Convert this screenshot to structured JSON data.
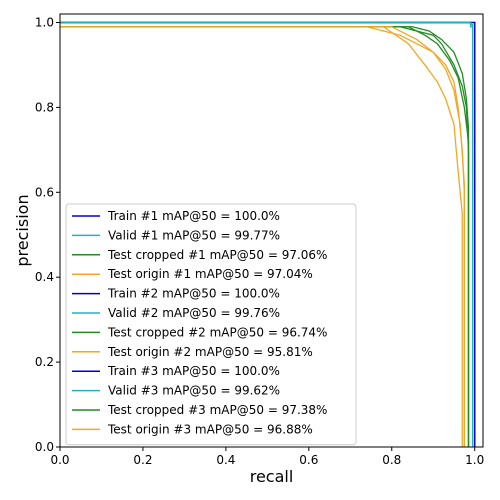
{
  "chart_data": {
    "type": "line",
    "xlabel": "recall",
    "ylabel": "precision",
    "xlim": [
      0.0,
      1.02
    ],
    "ylim": [
      0.0,
      1.02
    ],
    "x_ticks": [
      "0.0",
      "0.2",
      "0.4",
      "0.6",
      "0.8",
      "1.0"
    ],
    "y_ticks": [
      "0.0",
      "0.2",
      "0.4",
      "0.6",
      "0.8",
      "1.0"
    ],
    "grid": false,
    "legend_position": "lower-left",
    "series": [
      {
        "name": "Train #1 mAP@50 = 100.0%",
        "color": "#0000cd",
        "x": [
          0,
          1.0,
          1.0
        ],
        "y": [
          1.0,
          1.0,
          0
        ]
      },
      {
        "name": "Valid #1 mAP@50 = 99.77%",
        "color": "#20b2c0",
        "x": [
          0,
          0.99,
          0.99,
          0.995,
          0.995
        ],
        "y": [
          1.0,
          1.0,
          0.995,
          0.995,
          0
        ]
      },
      {
        "name": "Test cropped #1 mAP@50 = 97.06%",
        "color": "#228b22",
        "x": [
          0,
          0.82,
          0.86,
          0.9,
          0.92,
          0.95,
          0.97,
          0.98,
          0.985,
          0.985
        ],
        "y": [
          0.99,
          0.99,
          0.98,
          0.97,
          0.95,
          0.9,
          0.85,
          0.8,
          0.7,
          0
        ]
      },
      {
        "name": "Test origin #1 mAP@50 = 97.04%",
        "color": "#f5a623",
        "x": [
          0,
          0.74,
          0.82,
          0.86,
          0.9,
          0.93,
          0.95,
          0.96,
          0.97,
          0.975,
          0.975
        ],
        "y": [
          0.99,
          0.99,
          0.97,
          0.95,
          0.93,
          0.9,
          0.86,
          0.8,
          0.7,
          0.6,
          0
        ]
      },
      {
        "name": "Train #2 mAP@50 = 100.0%",
        "color": "#0000cd",
        "x": [
          0,
          1.0,
          1.0
        ],
        "y": [
          1.0,
          1.0,
          0
        ]
      },
      {
        "name": "Valid #2 mAP@50 = 99.76%",
        "color": "#20b2c0",
        "x": [
          0,
          0.99,
          0.99,
          0.995,
          0.995
        ],
        "y": [
          1.0,
          1.0,
          0.995,
          0.995,
          0
        ]
      },
      {
        "name": "Test cropped #2 mAP@50 = 96.74%",
        "color": "#228b22",
        "x": [
          0,
          0.84,
          0.88,
          0.91,
          0.94,
          0.96,
          0.975,
          0.985,
          0.985
        ],
        "y": [
          0.99,
          0.99,
          0.97,
          0.95,
          0.91,
          0.87,
          0.8,
          0.72,
          0
        ]
      },
      {
        "name": "Test origin #2 mAP@50 = 95.81%",
        "color": "#f5a623",
        "x": [
          0,
          0.78,
          0.84,
          0.88,
          0.91,
          0.93,
          0.95,
          0.96,
          0.97,
          0.97
        ],
        "y": [
          0.99,
          0.99,
          0.95,
          0.9,
          0.86,
          0.82,
          0.76,
          0.65,
          0.55,
          0
        ]
      },
      {
        "name": "Train #3 mAP@50 = 100.0%",
        "color": "#0000cd",
        "x": [
          0,
          1.0,
          1.0
        ],
        "y": [
          1.0,
          1.0,
          0
        ]
      },
      {
        "name": "Valid #3 mAP@50 = 99.62%",
        "color": "#20b2c0",
        "x": [
          0,
          0.99,
          0.99,
          0.995,
          0.995
        ],
        "y": [
          1.0,
          1.0,
          0.99,
          0.99,
          0
        ]
      },
      {
        "name": "Test cropped #3 mAP@50 = 97.38%",
        "color": "#228b22",
        "x": [
          0,
          0.85,
          0.89,
          0.92,
          0.95,
          0.97,
          0.98,
          0.985,
          0.985
        ],
        "y": [
          0.99,
          0.99,
          0.98,
          0.96,
          0.93,
          0.88,
          0.82,
          0.75,
          0
        ]
      },
      {
        "name": "Test origin #3 mAP@50 = 96.88%",
        "color": "#f5a623",
        "x": [
          0,
          0.8,
          0.86,
          0.9,
          0.93,
          0.95,
          0.965,
          0.975,
          0.975
        ],
        "y": [
          0.99,
          0.99,
          0.96,
          0.93,
          0.89,
          0.84,
          0.76,
          0.62,
          0
        ]
      }
    ]
  }
}
